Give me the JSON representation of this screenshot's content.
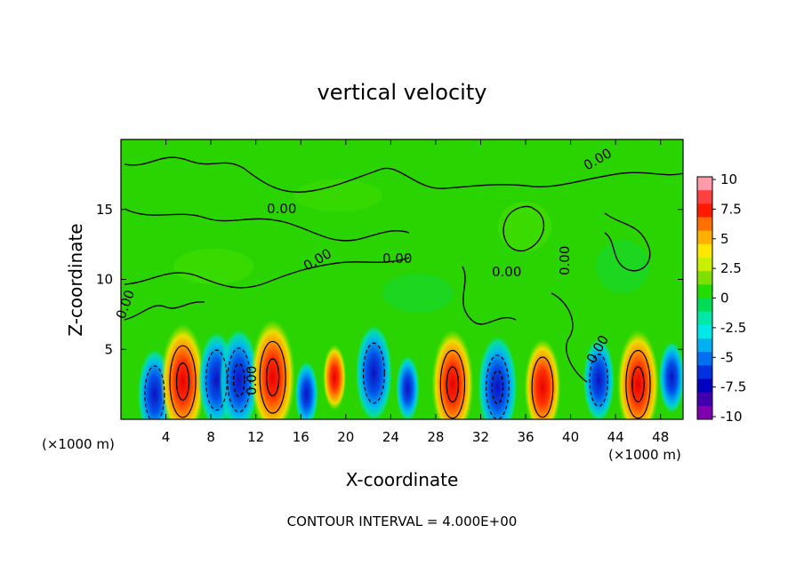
{
  "chart_data": {
    "type": "heatmap",
    "title": "vertical velocity",
    "xlabel": "X-coordinate",
    "ylabel": "Z-coordinate",
    "x_unit_label": "(×1000 m)",
    "z_unit_label": "(×1000 m)",
    "xlim": [
      0,
      50
    ],
    "ylim": [
      0,
      20
    ],
    "x_ticks": [
      4,
      8,
      12,
      16,
      20,
      24,
      28,
      32,
      36,
      40,
      44,
      48
    ],
    "y_ticks": [
      5,
      10,
      15
    ],
    "colorbar": {
      "range": [
        -10,
        10
      ],
      "tick_labels": [
        "10",
        "7.5",
        "5",
        "2.5",
        "0",
        "-2.5",
        "-5",
        "-7.5",
        "-10"
      ],
      "colors": [
        "#ff9aa8",
        "#ff4040",
        "#ff1a00",
        "#ff7000",
        "#ffb000",
        "#ffe800",
        "#c8f000",
        "#7ee000",
        "#22dd00",
        "#00dd55",
        "#00e8a8",
        "#00e8e8",
        "#00b0f0",
        "#0070f0",
        "#0030e0",
        "#0000c0",
        "#4000b0",
        "#8000b0"
      ]
    },
    "contour_interval_text": "CONTOUR INTERVAL = 4.000E+00",
    "contour_labels": [
      "0.00",
      "0.00",
      "0.00",
      "0.00",
      "0.00",
      "0.00",
      "0.00",
      "0.00",
      "0.00",
      "0.00"
    ],
    "cells": [
      {
        "x": 3,
        "z": 1.8,
        "w": -6
      },
      {
        "x": 5.5,
        "z": 2.7,
        "w": 10
      },
      {
        "x": 8.5,
        "z": 2.8,
        "w": -7
      },
      {
        "x": 10.5,
        "z": 2.8,
        "w": -8
      },
      {
        "x": 13.5,
        "z": 3.0,
        "w": 10
      },
      {
        "x": 16.5,
        "z": 1.8,
        "w": -2
      },
      {
        "x": 19,
        "z": 3.0,
        "w": 2
      },
      {
        "x": 22.5,
        "z": 3.3,
        "w": -7
      },
      {
        "x": 25.5,
        "z": 2.2,
        "w": -2
      },
      {
        "x": 29.5,
        "z": 2.5,
        "w": 9
      },
      {
        "x": 33.5,
        "z": 2.3,
        "w": -8
      },
      {
        "x": 37.5,
        "z": 2.3,
        "w": 7
      },
      {
        "x": 42.5,
        "z": 2.8,
        "w": -5
      },
      {
        "x": 46,
        "z": 2.5,
        "w": 9
      },
      {
        "x": 49,
        "z": 3.0,
        "w": -3
      }
    ]
  }
}
